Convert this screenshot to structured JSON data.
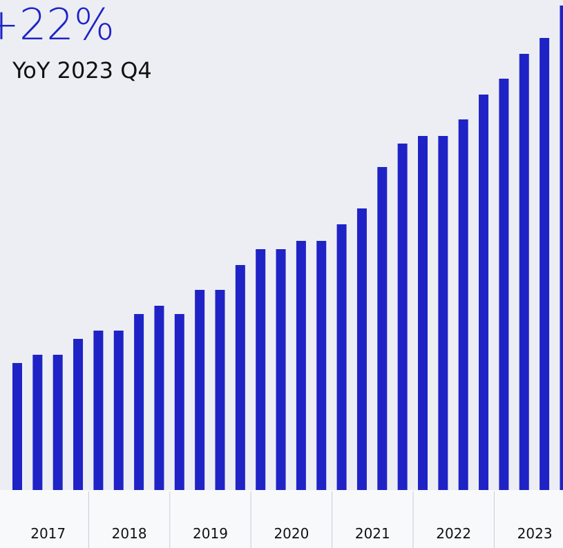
{
  "chart_data": {
    "type": "bar",
    "headline": "+22%",
    "subtitle": "YoY 2023 Q4",
    "groups": [
      "2017",
      "2018",
      "2019",
      "2020",
      "2021",
      "2022",
      "2023"
    ],
    "values": [
      184,
      196,
      196,
      219,
      231,
      231,
      255,
      267,
      255,
      290,
      290,
      326,
      349,
      349,
      361,
      361,
      385,
      408,
      468,
      502,
      513,
      513,
      537,
      573,
      596,
      632,
      655,
      702
    ],
    "color": "#1f23c6"
  }
}
